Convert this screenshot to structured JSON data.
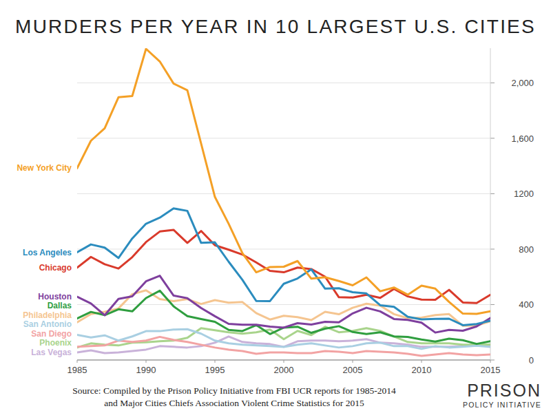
{
  "chart_data": {
    "type": "line",
    "title": "MURDERS PER YEAR IN 10 LARGEST U.S. CITIES",
    "source": [
      "Source: Compiled by the Prison Policy Initiative from FBI UCR reports for 1985-2014",
      "and Major Cities Chiefs Association Violent Crime Statistics for 2015"
    ],
    "logo": [
      "PRISON",
      "POLICY INITIATIVE"
    ],
    "x": [
      1985,
      1986,
      1987,
      1988,
      1989,
      1990,
      1991,
      1992,
      1993,
      1994,
      1995,
      1996,
      1997,
      1998,
      1999,
      2000,
      2001,
      2002,
      2003,
      2004,
      2005,
      2006,
      2007,
      2008,
      2009,
      2010,
      2011,
      2012,
      2013,
      2014,
      2015
    ],
    "xlim": [
      1985,
      2015
    ],
    "xticks": [
      1985,
      1990,
      1995,
      2000,
      2005,
      2010,
      2015
    ],
    "ylim": [
      0,
      2250
    ],
    "yticks": [
      0,
      400,
      800,
      1200,
      {
        "value": 1600,
        "label": "1,600"
      },
      {
        "value": 2000,
        "label": "2,000"
      }
    ],
    "grid": true,
    "series": [
      {
        "name": "New York City",
        "color": "#f4a026",
        "values": [
          1384,
          1582,
          1672,
          1896,
          1905,
          2245,
          2154,
          1995,
          1946,
          1561,
          1177,
          983,
          770,
          633,
          671,
          673,
          714,
          587,
          597,
          570,
          539,
          596,
          496,
          523,
          471,
          536,
          515,
          419,
          335,
          333,
          352
        ]
      },
      {
        "name": "Los Angeles",
        "color": "#2b8cbe",
        "values": [
          777,
          834,
          811,
          736,
          877,
          983,
          1027,
          1094,
          1076,
          845,
          849,
          709,
          578,
          426,
          425,
          550,
          588,
          654,
          515,
          518,
          489,
          480,
          395,
          384,
          312,
          293,
          297,
          298,
          251,
          260,
          283
        ]
      },
      {
        "name": "Chicago",
        "color": "#d93a2b",
        "values": [
          666,
          744,
          691,
          660,
          742,
          851,
          927,
          939,
          845,
          931,
          828,
          796,
          761,
          704,
          643,
          633,
          667,
          656,
          601,
          453,
          451,
          471,
          448,
          513,
          459,
          436,
          435,
          506,
          415,
          411,
          470
        ]
      },
      {
        "name": "Houston",
        "color": "#7e3f9d",
        "values": [
          456,
          408,
          323,
          441,
          459,
          568,
          608,
          465,
          446,
          375,
          316,
          261,
          254,
          255,
          241,
          234,
          266,
          256,
          276,
          272,
          336,
          377,
          351,
          296,
          289,
          269,
          198,
          217,
          211,
          242,
          303
        ]
      },
      {
        "name": "Dallas",
        "color": "#2f9e3f",
        "values": [
          300,
          347,
          324,
          366,
          351,
          447,
          500,
          387,
          317,
          296,
          276,
          217,
          209,
          252,
          187,
          234,
          240,
          196,
          226,
          244,
          202,
          187,
          200,
          170,
          166,
          148,
          133,
          154,
          143,
          116,
          136
        ]
      },
      {
        "name": "Philadelphia",
        "color": "#f5c590",
        "values": [
          272,
          332,
          348,
          372,
          475,
          503,
          440,
          425,
          439,
          404,
          432,
          414,
          418,
          338,
          292,
          319,
          309,
          288,
          348,
          330,
          377,
          406,
          392,
          331,
          302,
          306,
          324,
          331,
          247,
          248,
          280
        ]
      },
      {
        "name": "San Antonio",
        "color": "#a9cfe2",
        "values": [
          182,
          163,
          178,
          140,
          170,
          208,
          208,
          220,
          222,
          190,
          140,
          120,
          110,
          105,
          100,
          94,
          110,
          120,
          105,
          90,
          100,
          120,
          125,
          100,
          100,
          80,
          100,
          90,
          95,
          103,
          94
        ]
      },
      {
        "name": "San Diego",
        "color": "#f2a3a3",
        "values": [
          95,
          100,
          105,
          140,
          130,
          140,
          167,
          145,
          130,
          110,
          90,
          75,
          65,
          45,
          55,
          55,
          50,
          50,
          65,
          60,
          50,
          65,
          60,
          55,
          45,
          30,
          40,
          50,
          40,
          35,
          40
        ]
      },
      {
        "name": "Phoenix",
        "color": "#a9d48c",
        "values": [
          90,
          120,
          110,
          105,
          125,
          128,
          135,
          140,
          160,
          230,
          215,
          200,
          190,
          200,
          220,
          150,
          210,
          180,
          240,
          200,
          210,
          230,
          210,
          170,
          130,
          120,
          120,
          120,
          110,
          110,
          112
        ]
      },
      {
        "name": "Las Vegas",
        "color": "#c9b2d9",
        "values": [
          55,
          70,
          50,
          55,
          65,
          75,
          100,
          95,
          90,
          100,
          125,
          170,
          130,
          120,
          115,
          95,
          135,
          140,
          140,
          135,
          140,
          150,
          125,
          120,
          110,
          95,
          95,
          95,
          100,
          115,
          100
        ]
      }
    ]
  }
}
